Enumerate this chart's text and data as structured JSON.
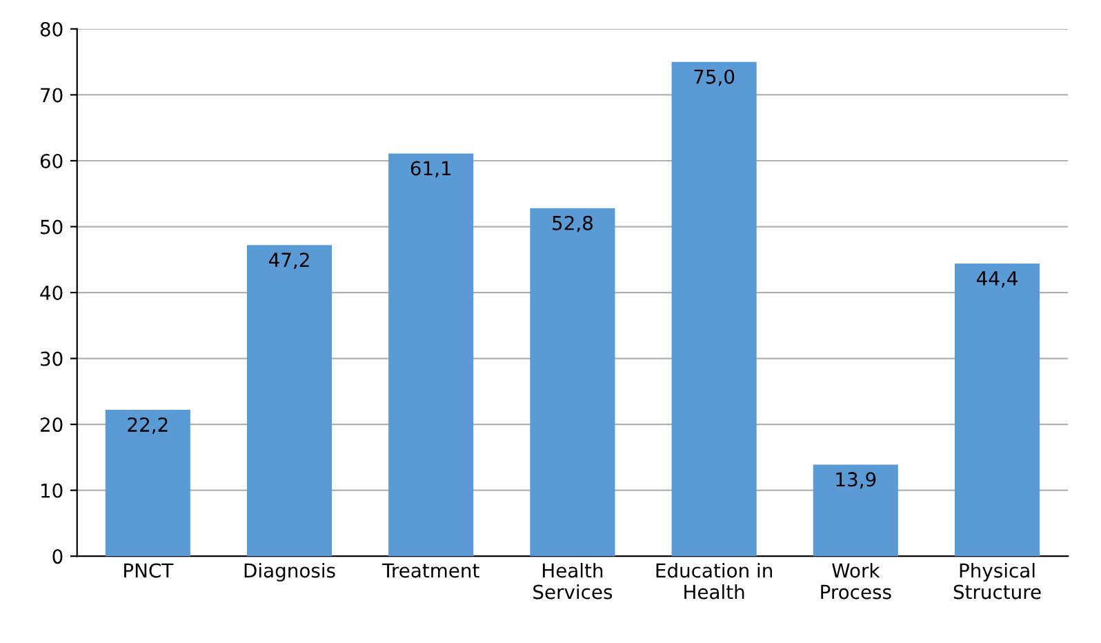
{
  "chart_data": {
    "type": "bar",
    "categories": [
      "PNCT",
      "Diagnosis",
      "Treatment",
      "Health\nServices",
      "Education in\nHealth",
      "Work\nProcess",
      "Physical\nStructure"
    ],
    "values": [
      22.2,
      47.2,
      61.1,
      52.8,
      75.0,
      13.9,
      44.4
    ],
    "value_labels": [
      "22,2",
      "47,2",
      "61,1",
      "52,8",
      "75,0",
      "13,9",
      "44,4"
    ],
    "color": "#5b9bd5",
    "ylim": [
      0,
      80
    ],
    "yticks": [
      0,
      10,
      20,
      30,
      40,
      50,
      60,
      70,
      80
    ],
    "grid": "y"
  }
}
